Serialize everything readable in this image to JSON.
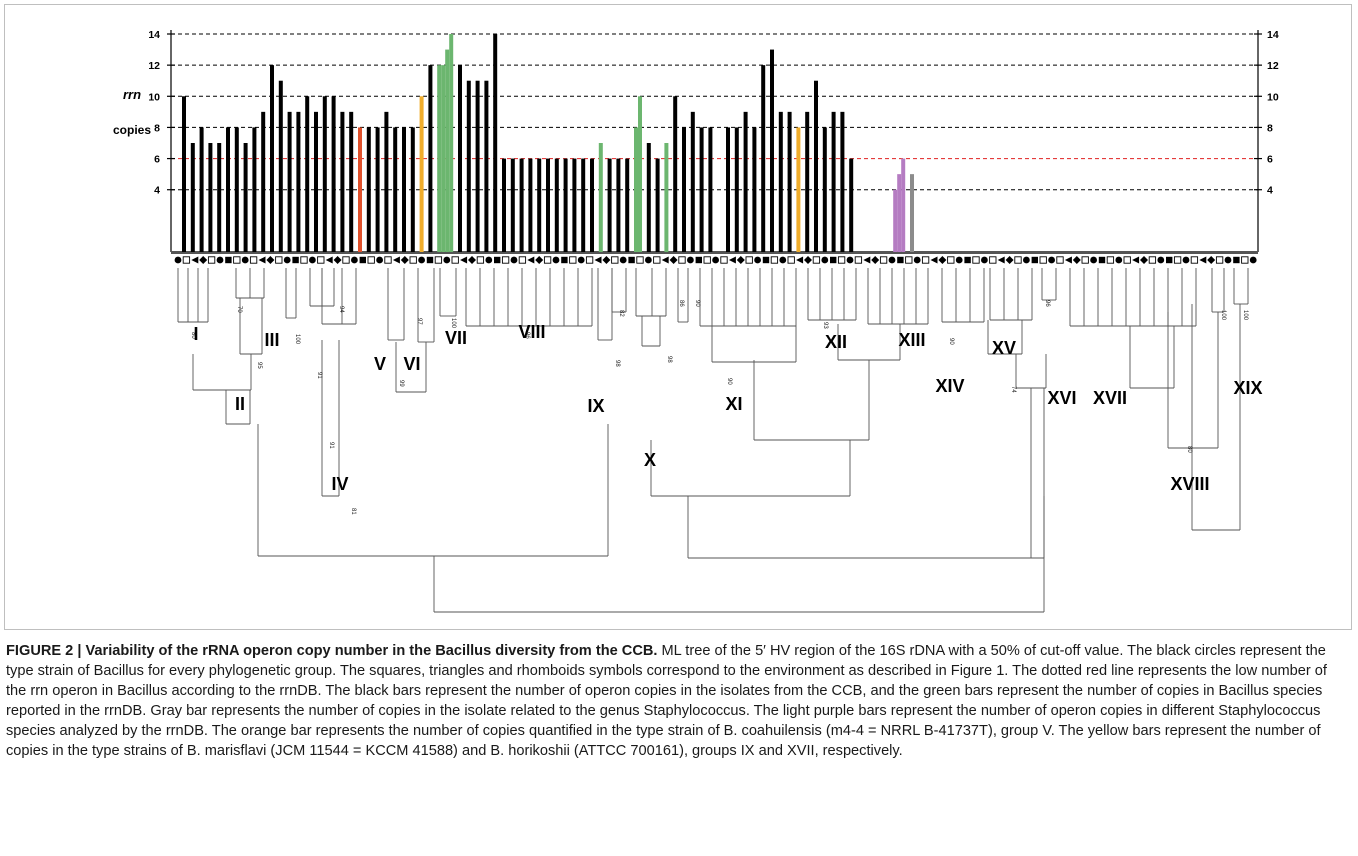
{
  "figure": {
    "axis_label_line1": "rrn",
    "axis_label_line2": "copies",
    "y_ticks": [
      4,
      6,
      8,
      10,
      12,
      14
    ],
    "colors": {
      "black": "#000000",
      "green": "#6cb66f",
      "gray": "#8c8c8c",
      "purple": "#b57cc2",
      "orange": "#e0522d",
      "yellow": "#f0ad2b",
      "low_copy_line": "#e02020"
    },
    "bootstrap": [
      "80",
      "70",
      "95",
      "100",
      "91",
      "91",
      "94",
      "81",
      "99",
      "97",
      "100",
      "96",
      "98",
      "82",
      "98",
      "86",
      "90",
      "90",
      "93",
      "90",
      "74",
      "96",
      "80",
      "100",
      "100"
    ],
    "group_labels": [
      "I",
      "II",
      "III",
      "IV",
      "V",
      "VI",
      "VII",
      "VIII",
      "IX",
      "X",
      "XI",
      "XII",
      "XIII",
      "XIV",
      "XV",
      "XVI",
      "XVII",
      "XVIII",
      "XIX"
    ]
  },
  "chart_data": {
    "type": "bar",
    "ylabel": "rrn copies",
    "ylim": [
      0,
      14
    ],
    "reference_line": {
      "value": 6,
      "meaning": "low number of the rrn operon in Bacillus according to the rrnDB"
    },
    "series": [
      {
        "name": "Isolates from the CCB",
        "color": "black",
        "values": [
          10,
          7,
          8,
          7,
          7,
          8,
          8,
          7,
          8,
          9,
          12,
          11,
          9,
          9,
          10,
          9,
          10,
          10,
          9,
          9,
          8,
          8,
          9,
          8,
          8,
          8,
          12,
          12,
          11,
          11,
          11,
          14,
          6,
          6,
          6,
          6,
          6,
          6,
          6,
          6,
          6,
          6,
          6,
          6,
          6,
          6,
          7,
          6,
          10,
          8,
          9,
          8,
          8,
          8,
          8,
          9,
          8,
          12,
          13,
          9,
          9,
          9,
          11,
          8,
          9,
          9,
          6
        ]
      },
      {
        "name": "Bacillus species in rrnDB",
        "color": "green",
        "values": [
          12,
          12,
          13,
          14,
          7,
          8,
          10,
          7
        ]
      },
      {
        "name": "Staphylococcus isolate",
        "color": "gray",
        "values": [
          5
        ]
      },
      {
        "name": "Staphylococcus species in rrnDB",
        "color": "purple",
        "values": [
          4,
          5,
          6
        ]
      },
      {
        "name": "B. coahuilensis",
        "color": "orange",
        "values": [
          8
        ]
      },
      {
        "name": "B. marisflavi, B. horikoshii",
        "color": "yellow",
        "values": [
          10,
          8
        ]
      }
    ]
  },
  "caption": {
    "label": "FIGURE 2 | Variability of the rRNA operon copy number in the Bacillus diversity from the CCB.",
    "text": "ML tree of the 5′ HV region of the 16S rDNA with a 50% of cut-off value. The black circles represent the type strain of Bacillus for every phylogenetic group. The squares, triangles and rhomboids symbols correspond to the environment as described in Figure 1. The dotted red line represents the low number of the rrn operon in Bacillus according to the rrnDB. The black bars represent the number of operon copies in the isolates from the CCB, and the green bars represent the number of copies in Bacillus species reported in the rrnDB. Gray bar represents the number of copies in the isolate related to the genus Staphylococcus. The light purple bars represent the number of operon copies in different Staphylococcus species analyzed by the rrnDB. The orange bar represents the number of copies quantified in the type strain of B. coahuilensis (m4-4 = NRRL B-41737T), group V. The yellow bars represent the number of copies in the type strains of B. marisflavi (JCM 11544 = KCCM 41588) and B. horikoshii (ATTCC 700161), groups IX and XVII, respectively."
  }
}
